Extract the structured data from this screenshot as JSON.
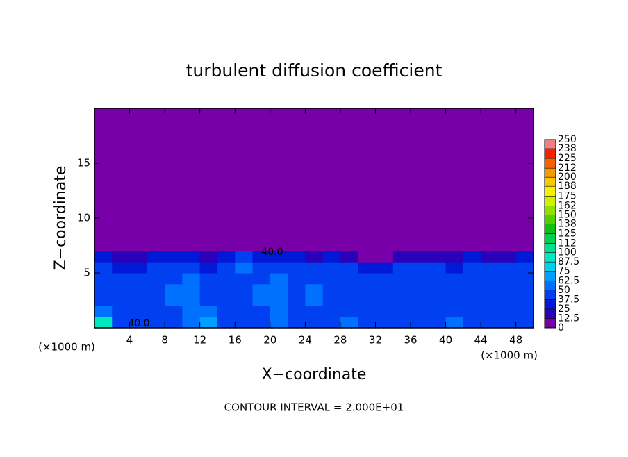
{
  "chart_data": {
    "type": "contour",
    "title": "turbulent diffusion coefficient",
    "xlabel": "X−coordinate",
    "ylabel": "Z−coordinate",
    "x_unit": "(×1000 m)",
    "footer": "CONTOUR INTERVAL = 2.000E+01",
    "annotations": [
      "40.0",
      "40.0"
    ],
    "xlim": [
      0,
      50
    ],
    "ylim": [
      0,
      20
    ],
    "xticks": [
      4,
      8,
      12,
      16,
      20,
      24,
      28,
      32,
      36,
      40,
      44,
      48
    ],
    "yticks": [
      5,
      10,
      15
    ],
    "xbins": [
      0,
      2,
      4,
      6,
      8,
      10,
      12,
      14,
      16,
      18,
      20,
      22,
      24,
      26,
      28,
      30,
      32,
      34,
      36,
      38,
      40,
      42,
      44,
      46,
      48,
      50
    ],
    "zbins": [
      0,
      1,
      2,
      3,
      4,
      5,
      6,
      7,
      20
    ],
    "z": [
      [
        90,
        45,
        40,
        45,
        40,
        50,
        70,
        45,
        40,
        45,
        55,
        40,
        45,
        45,
        50,
        45,
        40,
        45,
        40,
        45,
        50,
        45,
        40,
        45,
        40
      ],
      [
        50,
        40,
        40,
        45,
        40,
        55,
        60,
        45,
        40,
        45,
        50,
        45,
        40,
        45,
        40,
        45,
        45,
        40,
        45,
        40,
        45,
        40,
        45,
        40,
        45
      ],
      [
        45,
        40,
        40,
        45,
        55,
        50,
        45,
        40,
        40,
        55,
        60,
        45,
        50,
        40,
        45,
        40,
        40,
        45,
        40,
        45,
        45,
        40,
        45,
        45,
        40
      ],
      [
        40,
        40,
        45,
        40,
        50,
        55,
        45,
        40,
        40,
        50,
        55,
        45,
        50,
        40,
        45,
        40,
        45,
        40,
        40,
        40,
        45,
        40,
        40,
        45,
        40
      ],
      [
        45,
        45,
        40,
        45,
        45,
        50,
        40,
        45,
        40,
        45,
        50,
        40,
        45,
        45,
        40,
        40,
        40,
        45,
        45,
        40,
        40,
        45,
        40,
        40,
        45
      ],
      [
        40,
        35,
        35,
        40,
        45,
        40,
        35,
        40,
        55,
        45,
        45,
        40,
        40,
        45,
        40,
        35,
        35,
        40,
        40,
        40,
        35,
        40,
        40,
        40,
        40
      ],
      [
        25,
        20,
        20,
        25,
        30,
        25,
        20,
        30,
        40,
        35,
        30,
        25,
        20,
        25,
        20,
        10,
        10,
        15,
        20,
        20,
        20,
        25,
        20,
        20,
        25
      ],
      [
        0,
        0,
        0,
        0,
        0,
        0,
        0,
        0,
        0,
        0,
        0,
        0,
        0,
        0,
        0,
        0,
        0,
        0,
        0,
        0,
        0,
        0,
        0,
        0,
        0
      ]
    ],
    "colorbar": {
      "levels": [
        0,
        12.5,
        25,
        37.5,
        50,
        62.5,
        75,
        87.5,
        100,
        112,
        125,
        138,
        150,
        162,
        175,
        188,
        200,
        212,
        225,
        238,
        250
      ],
      "colors": [
        "#7800a8",
        "#2a00b8",
        "#0018d8",
        "#0040f0",
        "#0070ff",
        "#00a0ff",
        "#00d0f0",
        "#00e8c0",
        "#00e090",
        "#00d050",
        "#10c010",
        "#50d000",
        "#90e000",
        "#d0f000",
        "#f8f000",
        "#f8c800",
        "#f89800",
        "#f86000",
        "#f82000",
        "#f08080"
      ]
    }
  }
}
